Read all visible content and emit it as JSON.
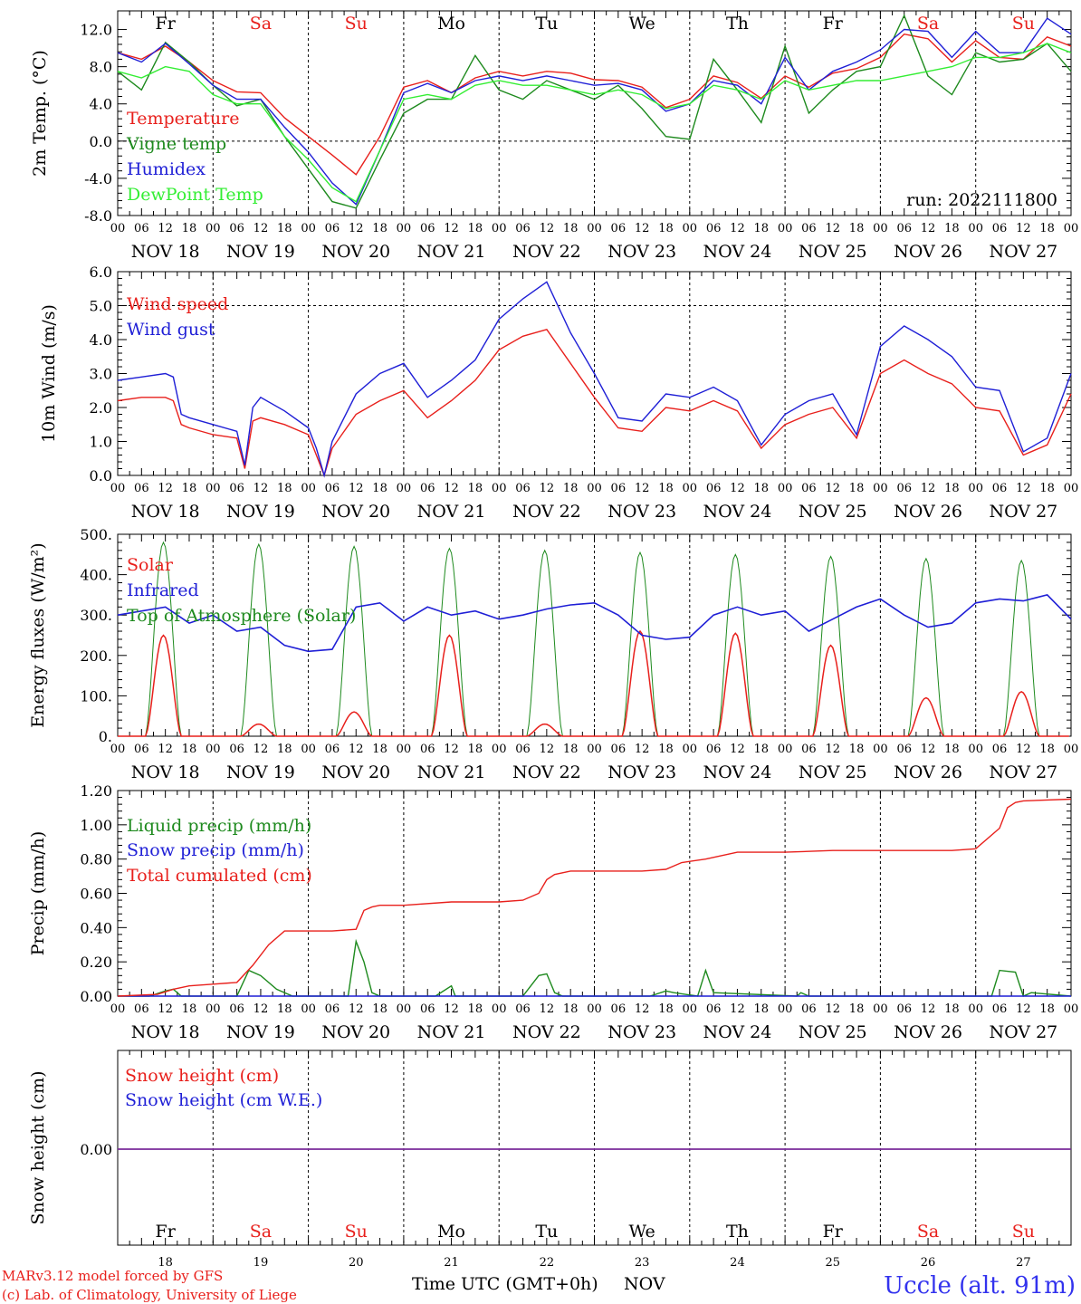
{
  "days": [
    {
      "abbr": "Fr",
      "color": "#000000",
      "label": "NOV 18",
      "num": "18"
    },
    {
      "abbr": "Sa",
      "color": "#e8201c",
      "label": "NOV 19",
      "num": "19"
    },
    {
      "abbr": "Su",
      "color": "#e8201c",
      "label": "NOV 20",
      "num": "20"
    },
    {
      "abbr": "Mo",
      "color": "#000000",
      "label": "NOV 21",
      "num": "21"
    },
    {
      "abbr": "Tu",
      "color": "#000000",
      "label": "NOV 22",
      "num": "22"
    },
    {
      "abbr": "We",
      "color": "#000000",
      "label": "NOV 23",
      "num": "23"
    },
    {
      "abbr": "Th",
      "color": "#000000",
      "label": "NOV 24",
      "num": "24"
    },
    {
      "abbr": "Fr",
      "color": "#000000",
      "label": "NOV 25",
      "num": "25"
    },
    {
      "abbr": "Sa",
      "color": "#e8201c",
      "label": "NOV 26",
      "num": "26"
    },
    {
      "abbr": "Su",
      "color": "#e8201c",
      "label": "NOV 27",
      "num": "27"
    }
  ],
  "hour_ticks": [
    "00",
    "06",
    "12",
    "18"
  ],
  "run_label": "run: 2022111800",
  "bottom": {
    "xlabel": "Time UTC (GMT+0h)",
    "month": "NOV",
    "credit1": "MARv3.12 model forced by GFS",
    "credit2": "(c) Lab. of Climatology, University of Liege",
    "station": "Uccle (alt. 91m)"
  },
  "colors": {
    "red": "#e8201c",
    "green": "#1e8a1e",
    "blue": "#1f1fd6",
    "lightgreen": "#33ee33",
    "purple": "#7a2a9a"
  },
  "chart_data": [
    {
      "type": "line",
      "ylabel": "2m Temp. (°C)",
      "ylim": [
        -8,
        14
      ],
      "yticks": [
        "-8.0",
        "-4.0",
        "0.0",
        "4.0",
        "8.0",
        "12.0"
      ],
      "ytick_values": [
        -8,
        -4,
        0,
        4,
        8,
        12
      ],
      "x_unit": "hours since Nov 18 00 UTC",
      "dashed_y": [
        0
      ],
      "series": [
        {
          "name": "Temperature",
          "color": "#e8201c",
          "x": [
            0,
            6,
            12,
            18,
            24,
            30,
            36,
            42,
            48,
            54,
            60,
            66,
            72,
            78,
            84,
            90,
            96,
            102,
            108,
            114,
            120,
            126,
            132,
            138,
            144,
            150,
            156,
            162,
            168,
            174,
            180,
            186,
            192,
            198,
            204,
            210,
            216,
            222,
            228,
            234,
            240
          ],
          "y": [
            9.5,
            8.8,
            10.2,
            8.5,
            6.5,
            5.3,
            5.2,
            2.5,
            0.5,
            -1.5,
            -3.6,
            0.5,
            5.8,
            6.5,
            5.2,
            6.8,
            7.5,
            7.0,
            7.5,
            7.3,
            6.6,
            6.5,
            5.8,
            3.6,
            4.5,
            7.0,
            6.3,
            4.6,
            7.0,
            5.8,
            7.3,
            7.8,
            9.0,
            11.5,
            11.0,
            8.5,
            10.8,
            9.0,
            8.8,
            11.2,
            10.2
          ]
        },
        {
          "name": "Vigne temp",
          "color": "#1e8a1e",
          "x": [
            0,
            6,
            12,
            18,
            24,
            30,
            36,
            42,
            48,
            54,
            60,
            66,
            72,
            78,
            84,
            90,
            96,
            102,
            108,
            114,
            120,
            126,
            132,
            138,
            144,
            150,
            156,
            162,
            168,
            174,
            180,
            186,
            192,
            198,
            204,
            210,
            216,
            222,
            228,
            234,
            240
          ],
          "y": [
            7.5,
            5.5,
            10.6,
            8.5,
            6.0,
            3.8,
            4.5,
            0.5,
            -3.0,
            -6.5,
            -7.2,
            -2.0,
            3.0,
            4.5,
            4.5,
            9.2,
            5.5,
            4.5,
            6.5,
            5.5,
            4.5,
            6.0,
            3.5,
            0.5,
            0.2,
            8.8,
            5.5,
            2.0,
            10.2,
            3.0,
            5.5,
            7.5,
            8.0,
            13.5,
            7.0,
            5.0,
            9.5,
            8.5,
            8.8,
            10.5,
            7.5
          ]
        },
        {
          "name": "Humidex",
          "color": "#1f1fd6",
          "x": [
            0,
            6,
            12,
            18,
            24,
            30,
            36,
            42,
            48,
            54,
            60,
            66,
            72,
            78,
            84,
            90,
            96,
            102,
            108,
            114,
            120,
            126,
            132,
            138,
            144,
            150,
            156,
            162,
            168,
            174,
            180,
            186,
            192,
            198,
            204,
            210,
            216,
            222,
            228,
            234,
            240
          ],
          "y": [
            9.5,
            8.5,
            10.5,
            8.3,
            6.0,
            4.5,
            4.5,
            1.5,
            -1.2,
            -4.5,
            -6.8,
            -1.0,
            5.2,
            6.2,
            5.2,
            6.5,
            7.0,
            6.5,
            7.0,
            6.5,
            6.0,
            6.2,
            5.5,
            3.2,
            4.0,
            6.5,
            6.0,
            4.0,
            9.0,
            5.5,
            7.5,
            8.5,
            9.8,
            12.0,
            11.8,
            9.0,
            11.8,
            9.5,
            9.5,
            13.2,
            11.5
          ]
        },
        {
          "name": "DewPoint Temp",
          "color": "#33ee33",
          "x": [
            0,
            6,
            12,
            18,
            24,
            30,
            36,
            42,
            48,
            54,
            60,
            66,
            72,
            78,
            84,
            90,
            96,
            102,
            108,
            114,
            120,
            126,
            132,
            138,
            144,
            150,
            156,
            162,
            168,
            174,
            180,
            186,
            192,
            198,
            204,
            210,
            216,
            222,
            228,
            234,
            240
          ],
          "y": [
            7.5,
            6.8,
            8.0,
            7.5,
            5.0,
            4.0,
            4.0,
            0.5,
            -2.0,
            -5.0,
            -6.5,
            -1.0,
            4.5,
            5.0,
            4.5,
            6.0,
            6.5,
            6.0,
            6.0,
            5.5,
            5.0,
            5.5,
            5.0,
            3.5,
            4.0,
            6.0,
            5.5,
            4.5,
            6.5,
            5.5,
            6.0,
            6.5,
            6.5,
            7.0,
            7.5,
            8.0,
            9.0,
            9.0,
            9.5,
            10.5,
            9.5
          ]
        }
      ]
    },
    {
      "type": "line",
      "ylabel": "10m Wind (m/s)",
      "ylim": [
        0,
        6
      ],
      "yticks": [
        "0.0",
        "1.0",
        "2.0",
        "3.0",
        "4.0",
        "5.0",
        "6.0"
      ],
      "ytick_values": [
        0,
        1,
        2,
        3,
        4,
        5,
        6
      ],
      "x_unit": "hours since Nov 18 00 UTC",
      "dashed_y": [
        5
      ],
      "series": [
        {
          "name": "Wind speed",
          "color": "#e8201c",
          "x": [
            0,
            6,
            12,
            14,
            16,
            18,
            24,
            30,
            32,
            34,
            36,
            42,
            48,
            50,
            52,
            54,
            60,
            66,
            72,
            78,
            84,
            90,
            96,
            102,
            108,
            114,
            120,
            126,
            132,
            138,
            144,
            150,
            156,
            162,
            168,
            174,
            180,
            186,
            192,
            198,
            204,
            210,
            216,
            222,
            228,
            234,
            240
          ],
          "y": [
            2.2,
            2.3,
            2.3,
            2.2,
            1.5,
            1.4,
            1.2,
            1.1,
            0.2,
            1.6,
            1.7,
            1.5,
            1.2,
            0.6,
            0.0,
            0.8,
            1.8,
            2.2,
            2.5,
            1.7,
            2.2,
            2.8,
            3.7,
            4.1,
            4.3,
            3.3,
            2.3,
            1.4,
            1.3,
            2.0,
            1.9,
            2.2,
            1.9,
            0.8,
            1.5,
            1.8,
            2.0,
            1.1,
            3.0,
            3.4,
            3.0,
            2.7,
            2.0,
            1.9,
            0.6,
            0.9,
            2.4
          ]
        },
        {
          "name": "Wind gust",
          "color": "#1f1fd6",
          "x": [
            0,
            6,
            12,
            14,
            16,
            18,
            24,
            30,
            32,
            34,
            36,
            42,
            48,
            50,
            52,
            54,
            60,
            66,
            72,
            78,
            84,
            90,
            96,
            102,
            108,
            114,
            120,
            126,
            132,
            138,
            144,
            150,
            156,
            162,
            168,
            174,
            180,
            186,
            192,
            198,
            204,
            210,
            216,
            222,
            228,
            234,
            240
          ],
          "y": [
            2.8,
            2.9,
            3.0,
            2.9,
            1.8,
            1.7,
            1.5,
            1.3,
            0.3,
            2.0,
            2.3,
            1.9,
            1.4,
            0.8,
            0.0,
            1.0,
            2.4,
            3.0,
            3.3,
            2.3,
            2.8,
            3.4,
            4.6,
            5.2,
            5.7,
            4.2,
            3.0,
            1.7,
            1.6,
            2.4,
            2.3,
            2.6,
            2.2,
            0.9,
            1.8,
            2.2,
            2.4,
            1.2,
            3.8,
            4.4,
            4.0,
            3.5,
            2.6,
            2.5,
            0.7,
            1.1,
            3.0
          ]
        }
      ]
    },
    {
      "type": "line",
      "ylabel": "Energy fluxes (W/m²)",
      "ylim": [
        0,
        500
      ],
      "yticks": [
        "0.",
        "100.",
        "200.",
        "300.",
        "400.",
        "500."
      ],
      "ytick_values": [
        0,
        100,
        200,
        300,
        400,
        500
      ],
      "x_unit": "hours since Nov 18 00 UTC",
      "daylight_start_hour": 7,
      "daylight_end_hour": 16,
      "series": [
        {
          "name": "Solar",
          "color": "#e8201c",
          "daily_peak": [
            250,
            30,
            60,
            250,
            30,
            260,
            255,
            225,
            95,
            110
          ]
        },
        {
          "name": "Infrared",
          "color": "#1f1fd6",
          "x": [
            0,
            12,
            18,
            24,
            30,
            36,
            42,
            48,
            54,
            60,
            66,
            72,
            78,
            84,
            90,
            96,
            102,
            108,
            114,
            120,
            126,
            132,
            138,
            144,
            150,
            156,
            162,
            168,
            174,
            180,
            186,
            192,
            198,
            204,
            210,
            216,
            222,
            228,
            234,
            240
          ],
          "y": [
            300,
            320,
            280,
            300,
            260,
            270,
            225,
            210,
            215,
            320,
            330,
            285,
            320,
            300,
            310,
            290,
            300,
            315,
            325,
            330,
            300,
            250,
            240,
            245,
            300,
            320,
            300,
            310,
            260,
            290,
            320,
            340,
            300,
            270,
            280,
            330,
            340,
            335,
            350,
            290
          ]
        },
        {
          "name": "Top of Atmosphere (Solar)",
          "color": "#1e8a1e",
          "daily_peak": [
            480,
            475,
            470,
            465,
            460,
            455,
            450,
            445,
            440,
            435
          ]
        }
      ]
    },
    {
      "type": "line",
      "ylabel": "Precip (mm/h)",
      "ylim": [
        0,
        1.2
      ],
      "yticks": [
        "0.00",
        "0.20",
        "0.40",
        "0.60",
        "0.80",
        "1.00",
        "1.20"
      ],
      "ytick_values": [
        0,
        0.2,
        0.4,
        0.6,
        0.8,
        1.0,
        1.2
      ],
      "x_unit": "hours since Nov 18 00 UTC",
      "series": [
        {
          "name": "Liquid precip (mm/h)",
          "color": "#1e8a1e",
          "x": [
            0,
            8,
            12,
            14,
            16,
            30,
            33,
            36,
            40,
            44,
            58,
            60,
            62,
            64,
            66,
            80,
            84,
            85,
            86,
            102,
            106,
            108,
            110,
            112,
            134,
            138,
            140,
            146,
            148,
            150,
            171,
            172,
            174,
            220,
            222,
            226,
            228,
            230,
            240
          ],
          "y": [
            0,
            0,
            0.03,
            0.04,
            0,
            0,
            0.15,
            0.12,
            0.04,
            0,
            0,
            0.32,
            0.2,
            0.02,
            0,
            0,
            0.06,
            0,
            0,
            0,
            0.12,
            0.13,
            0.02,
            0,
            0,
            0.03,
            0.02,
            0,
            0.15,
            0.02,
            0,
            0.02,
            0,
            0,
            0.15,
            0.14,
            0,
            0.02,
            0
          ]
        },
        {
          "name": "Snow precip (mm/h)",
          "color": "#1f1fd6",
          "x": [
            0,
            240
          ],
          "y": [
            0,
            0
          ]
        },
        {
          "name": "Total cumulated (cm)",
          "color": "#e8201c",
          "x": [
            0,
            10,
            14,
            18,
            24,
            30,
            34,
            38,
            42,
            48,
            54,
            60,
            62,
            64,
            66,
            72,
            84,
            96,
            102,
            106,
            108,
            110,
            114,
            120,
            132,
            138,
            142,
            148,
            156,
            168,
            180,
            192,
            204,
            210,
            216,
            222,
            224,
            226,
            228,
            240
          ],
          "y": [
            0,
            0.01,
            0.04,
            0.06,
            0.07,
            0.08,
            0.18,
            0.3,
            0.38,
            0.38,
            0.38,
            0.39,
            0.5,
            0.52,
            0.53,
            0.53,
            0.55,
            0.55,
            0.56,
            0.6,
            0.68,
            0.71,
            0.73,
            0.73,
            0.73,
            0.74,
            0.78,
            0.8,
            0.84,
            0.84,
            0.85,
            0.85,
            0.85,
            0.85,
            0.86,
            0.98,
            1.1,
            1.13,
            1.14,
            1.15
          ]
        }
      ]
    },
    {
      "type": "line",
      "ylabel": "Snow height (cm)",
      "yticks": [
        "0.00"
      ],
      "x_unit": "hours since Nov 18 00 UTC",
      "series": [
        {
          "name": "Snow height (cm)",
          "color": "#e8201c",
          "x": [
            0,
            240
          ],
          "y": [
            0,
            0
          ]
        },
        {
          "name": "Snow height (cm W.E.)",
          "color": "#1f1fd6",
          "x": [
            0,
            240
          ],
          "y": [
            0,
            0
          ]
        }
      ]
    }
  ]
}
